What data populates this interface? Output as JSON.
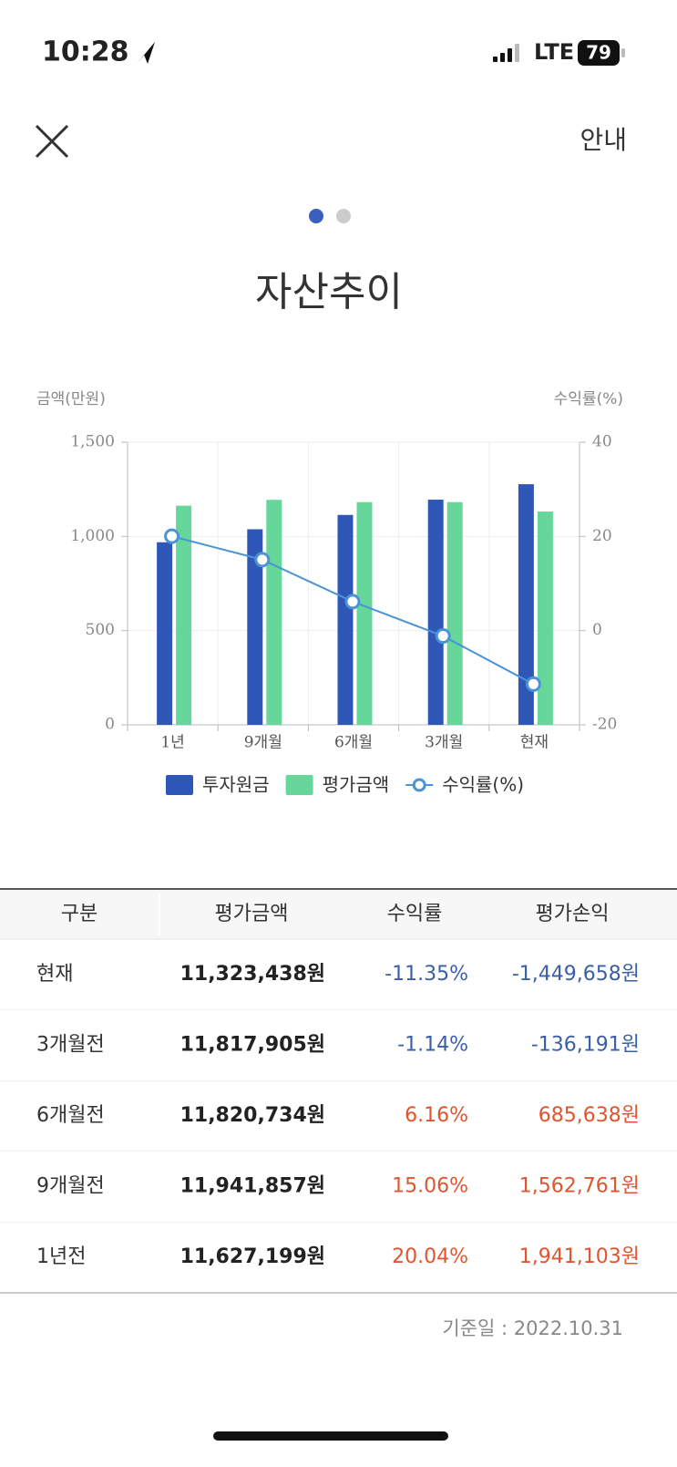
{
  "status_bar": {
    "time": "10:28",
    "network": "LTE",
    "battery": "79"
  },
  "header": {
    "action": "안내"
  },
  "chart_data": {
    "type": "bar",
    "title": "자산추이",
    "y_label": "금액(만원)",
    "y2_label": "수익률(%)",
    "categories": [
      "1년",
      "9개월",
      "6개월",
      "3개월",
      "현재"
    ],
    "series": [
      {
        "name": "투자원금",
        "color": "#2f57b8",
        "values": [
          969,
          1038,
          1114,
          1195,
          1277
        ]
      },
      {
        "name": "평가금액",
        "color": "#66d69a",
        "values": [
          1163,
          1194,
          1182,
          1182,
          1132
        ]
      },
      {
        "name": "수익률(%)",
        "type": "line",
        "axis": "y2",
        "color": "#4a94d6",
        "values": [
          20.04,
          15.06,
          6.16,
          -1.14,
          -11.35
        ]
      }
    ],
    "ylim": [
      0,
      1500
    ],
    "yticks": [
      0,
      500,
      {
        "value": 1000,
        "label": "1,000"
      },
      {
        "value": 1500,
        "label": "1,500"
      }
    ],
    "y2lim": [
      -20,
      40
    ],
    "y2ticks": [
      -20,
      0,
      20,
      40
    ],
    "grid": true
  },
  "table": {
    "header": [
      "구분",
      "평가금액",
      "수익률",
      "평가손익"
    ],
    "rows": [
      [
        "현재",
        "11,323,438원",
        "-11.35%",
        "-1,449,658원"
      ],
      [
        "3개월전",
        "11,817,905원",
        "-1.14%",
        "-136,191원"
      ],
      [
        "6개월전",
        "11,820,734원",
        "6.16%",
        "685,638원"
      ],
      [
        "9개월전",
        "11,941,857원",
        "15.06%",
        "1,562,761원"
      ],
      [
        "1년전",
        "11,627,199원",
        "20.04%",
        "1,941,103원"
      ]
    ]
  },
  "footer": {
    "base_date": "기준일 : 2022.10.31"
  }
}
